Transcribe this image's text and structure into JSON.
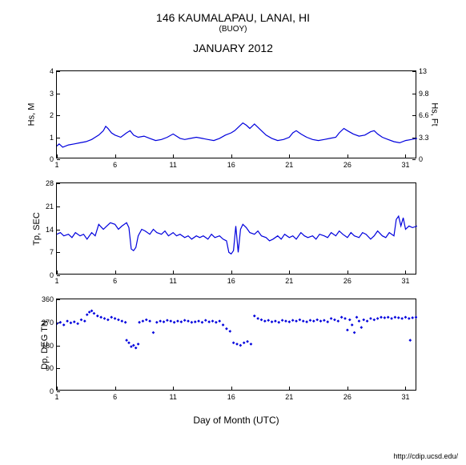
{
  "header": {
    "station": "146 KAUMALAPAU, LANAI, HI",
    "type": "(BUOY)",
    "period": "JANUARY 2012"
  },
  "footer": {
    "url": "http://cdip.ucsd.edu/"
  },
  "x_axis": {
    "label": "Day of Month (UTC)",
    "ticks": [
      1,
      6,
      11,
      16,
      21,
      26,
      31
    ],
    "xmin": 1,
    "xmax": 32
  },
  "colors": {
    "line": "#0000dd",
    "scatter": "#0000dd",
    "bg": "#ffffff",
    "border": "#000000",
    "text": "#000000"
  },
  "panels": [
    {
      "id": "hs",
      "ylabel_left": "Hs, M",
      "ylabel_right": "Hs, Ft",
      "yticks_left": [
        0,
        1,
        2,
        3,
        4
      ],
      "yticks_right": [
        0,
        3.3,
        6.6,
        9.8,
        13
      ],
      "ymin": 0,
      "ymax": 4,
      "height": 110,
      "type": "line",
      "series": [
        [
          1,
          0.6
        ],
        [
          1.2,
          0.7
        ],
        [
          1.5,
          0.55
        ],
        [
          2,
          0.65
        ],
        [
          2.5,
          0.7
        ],
        [
          3,
          0.75
        ],
        [
          3.5,
          0.8
        ],
        [
          4,
          0.9
        ],
        [
          4.3,
          1.0
        ],
        [
          4.6,
          1.1
        ],
        [
          5,
          1.3
        ],
        [
          5.2,
          1.5
        ],
        [
          5.4,
          1.4
        ],
        [
          5.7,
          1.2
        ],
        [
          6,
          1.1
        ],
        [
          6.5,
          1.0
        ],
        [
          7,
          1.2
        ],
        [
          7.3,
          1.3
        ],
        [
          7.6,
          1.1
        ],
        [
          8,
          1.0
        ],
        [
          8.5,
          1.05
        ],
        [
          9,
          0.95
        ],
        [
          9.5,
          0.85
        ],
        [
          10,
          0.9
        ],
        [
          10.5,
          1.0
        ],
        [
          11,
          1.15
        ],
        [
          11.3,
          1.05
        ],
        [
          11.6,
          0.95
        ],
        [
          12,
          0.9
        ],
        [
          12.5,
          0.95
        ],
        [
          13,
          1.0
        ],
        [
          13.5,
          0.95
        ],
        [
          14,
          0.9
        ],
        [
          14.5,
          0.85
        ],
        [
          15,
          0.95
        ],
        [
          15.5,
          1.1
        ],
        [
          16,
          1.2
        ],
        [
          16.3,
          1.3
        ],
        [
          16.7,
          1.5
        ],
        [
          17,
          1.65
        ],
        [
          17.3,
          1.55
        ],
        [
          17.6,
          1.4
        ],
        [
          18,
          1.6
        ],
        [
          18.3,
          1.45
        ],
        [
          18.6,
          1.3
        ],
        [
          19,
          1.1
        ],
        [
          19.5,
          0.95
        ],
        [
          20,
          0.85
        ],
        [
          20.5,
          0.9
        ],
        [
          21,
          1.0
        ],
        [
          21.3,
          1.2
        ],
        [
          21.6,
          1.3
        ],
        [
          22,
          1.15
        ],
        [
          22.5,
          1.0
        ],
        [
          23,
          0.9
        ],
        [
          23.5,
          0.85
        ],
        [
          24,
          0.9
        ],
        [
          24.5,
          0.95
        ],
        [
          25,
          1.0
        ],
        [
          25.3,
          1.2
        ],
        [
          25.7,
          1.4
        ],
        [
          26,
          1.3
        ],
        [
          26.5,
          1.15
        ],
        [
          27,
          1.05
        ],
        [
          27.5,
          1.1
        ],
        [
          28,
          1.25
        ],
        [
          28.3,
          1.3
        ],
        [
          28.6,
          1.15
        ],
        [
          29,
          1.0
        ],
        [
          29.5,
          0.9
        ],
        [
          30,
          0.8
        ],
        [
          30.5,
          0.75
        ],
        [
          31,
          0.85
        ],
        [
          31.5,
          0.9
        ],
        [
          32,
          0.95
        ]
      ]
    },
    {
      "id": "tp",
      "ylabel_left": "Tp, SEC",
      "yticks_left": [
        0,
        7,
        14,
        21,
        28
      ],
      "ymin": 0,
      "ymax": 28,
      "height": 115,
      "type": "line",
      "series": [
        [
          1,
          12.5
        ],
        [
          1.3,
          13
        ],
        [
          1.6,
          12
        ],
        [
          2,
          12.5
        ],
        [
          2.3,
          11.5
        ],
        [
          2.6,
          13
        ],
        [
          3,
          12
        ],
        [
          3.3,
          12.5
        ],
        [
          3.6,
          11
        ],
        [
          4,
          13
        ],
        [
          4.3,
          12
        ],
        [
          4.6,
          15.5
        ],
        [
          5,
          14
        ],
        [
          5.3,
          15
        ],
        [
          5.6,
          16
        ],
        [
          6,
          15.5
        ],
        [
          6.3,
          14
        ],
        [
          6.6,
          15
        ],
        [
          7,
          16
        ],
        [
          7.2,
          14.5
        ],
        [
          7.4,
          8
        ],
        [
          7.6,
          7.5
        ],
        [
          7.8,
          8.5
        ],
        [
          8,
          12
        ],
        [
          8.3,
          14
        ],
        [
          8.6,
          13.5
        ],
        [
          9,
          12.5
        ],
        [
          9.3,
          14
        ],
        [
          9.6,
          13
        ],
        [
          10,
          12.5
        ],
        [
          10.3,
          13.5
        ],
        [
          10.6,
          12
        ],
        [
          11,
          13
        ],
        [
          11.3,
          12
        ],
        [
          11.6,
          12.5
        ],
        [
          12,
          11.5
        ],
        [
          12.3,
          12
        ],
        [
          12.6,
          11
        ],
        [
          13,
          12
        ],
        [
          13.3,
          11.5
        ],
        [
          13.6,
          12
        ],
        [
          14,
          11
        ],
        [
          14.3,
          12.5
        ],
        [
          14.6,
          11.5
        ],
        [
          15,
          12
        ],
        [
          15.3,
          11
        ],
        [
          15.6,
          10.5
        ],
        [
          15.8,
          7
        ],
        [
          16,
          6.5
        ],
        [
          16.2,
          7.5
        ],
        [
          16.4,
          15
        ],
        [
          16.6,
          7
        ],
        [
          16.8,
          14
        ],
        [
          17,
          15.5
        ],
        [
          17.3,
          14.5
        ],
        [
          17.6,
          13
        ],
        [
          18,
          12.5
        ],
        [
          18.3,
          13.5
        ],
        [
          18.6,
          12
        ],
        [
          19,
          11.5
        ],
        [
          19.3,
          10.5
        ],
        [
          19.6,
          11
        ],
        [
          20,
          12
        ],
        [
          20.3,
          11
        ],
        [
          20.6,
          12.5
        ],
        [
          21,
          11.5
        ],
        [
          21.3,
          12
        ],
        [
          21.6,
          11
        ],
        [
          22,
          13
        ],
        [
          22.3,
          12
        ],
        [
          22.6,
          11.5
        ],
        [
          23,
          12
        ],
        [
          23.3,
          11
        ],
        [
          23.6,
          12.5
        ],
        [
          24,
          12
        ],
        [
          24.3,
          11.5
        ],
        [
          24.6,
          13
        ],
        [
          25,
          12
        ],
        [
          25.3,
          13.5
        ],
        [
          25.6,
          12.5
        ],
        [
          26,
          11.5
        ],
        [
          26.3,
          13
        ],
        [
          26.6,
          12
        ],
        [
          27,
          11.5
        ],
        [
          27.3,
          13
        ],
        [
          27.6,
          12.5
        ],
        [
          28,
          11
        ],
        [
          28.3,
          12
        ],
        [
          28.6,
          13.5
        ],
        [
          29,
          12
        ],
        [
          29.3,
          11.5
        ],
        [
          29.6,
          13
        ],
        [
          30,
          12
        ],
        [
          30.2,
          17
        ],
        [
          30.4,
          18
        ],
        [
          30.6,
          15
        ],
        [
          30.8,
          17.5
        ],
        [
          31,
          14
        ],
        [
          31.3,
          15
        ],
        [
          31.6,
          14.5
        ],
        [
          32,
          15
        ]
      ]
    },
    {
      "id": "dp",
      "ylabel_left": "Dp, DEG TN",
      "yticks_left": [
        0,
        90,
        180,
        270,
        360
      ],
      "ymin": 0,
      "ymax": 360,
      "height": 115,
      "type": "scatter",
      "series": [
        [
          1,
          265
        ],
        [
          1.3,
          270
        ],
        [
          1.6,
          260
        ],
        [
          1.9,
          275
        ],
        [
          2.2,
          268
        ],
        [
          2.5,
          272
        ],
        [
          2.8,
          265
        ],
        [
          3.1,
          280
        ],
        [
          3.4,
          275
        ],
        [
          3.6,
          300
        ],
        [
          3.8,
          310
        ],
        [
          4.0,
          315
        ],
        [
          4.2,
          305
        ],
        [
          4.5,
          295
        ],
        [
          4.8,
          290
        ],
        [
          5.1,
          285
        ],
        [
          5.4,
          280
        ],
        [
          5.7,
          290
        ],
        [
          6.0,
          285
        ],
        [
          6.3,
          280
        ],
        [
          6.6,
          275
        ],
        [
          6.9,
          270
        ],
        [
          7.0,
          200
        ],
        [
          7.2,
          190
        ],
        [
          7.4,
          175
        ],
        [
          7.6,
          180
        ],
        [
          7.8,
          170
        ],
        [
          8.0,
          185
        ],
        [
          8.1,
          270
        ],
        [
          8.4,
          275
        ],
        [
          8.7,
          280
        ],
        [
          9.0,
          275
        ],
        [
          9.3,
          230
        ],
        [
          9.6,
          270
        ],
        [
          9.9,
          275
        ],
        [
          10.2,
          272
        ],
        [
          10.5,
          278
        ],
        [
          10.8,
          275
        ],
        [
          11.1,
          270
        ],
        [
          11.4,
          275
        ],
        [
          11.7,
          272
        ],
        [
          12.0,
          278
        ],
        [
          12.3,
          275
        ],
        [
          12.6,
          270
        ],
        [
          12.9,
          272
        ],
        [
          13.2,
          275
        ],
        [
          13.5,
          270
        ],
        [
          13.8,
          278
        ],
        [
          14.1,
          272
        ],
        [
          14.4,
          275
        ],
        [
          14.7,
          270
        ],
        [
          15.0,
          275
        ],
        [
          15.3,
          260
        ],
        [
          15.6,
          245
        ],
        [
          15.9,
          235
        ],
        [
          16.2,
          190
        ],
        [
          16.5,
          185
        ],
        [
          16.8,
          180
        ],
        [
          17.1,
          190
        ],
        [
          17.4,
          195
        ],
        [
          17.7,
          185
        ],
        [
          18.0,
          295
        ],
        [
          18.3,
          285
        ],
        [
          18.6,
          280
        ],
        [
          18.9,
          275
        ],
        [
          19.2,
          278
        ],
        [
          19.5,
          272
        ],
        [
          19.8,
          275
        ],
        [
          20.1,
          270
        ],
        [
          20.4,
          278
        ],
        [
          20.7,
          275
        ],
        [
          21.0,
          272
        ],
        [
          21.3,
          278
        ],
        [
          21.6,
          275
        ],
        [
          21.9,
          280
        ],
        [
          22.2,
          275
        ],
        [
          22.5,
          272
        ],
        [
          22.8,
          278
        ],
        [
          23.1,
          275
        ],
        [
          23.4,
          280
        ],
        [
          23.7,
          275
        ],
        [
          24.0,
          278
        ],
        [
          24.3,
          272
        ],
        [
          24.6,
          285
        ],
        [
          24.9,
          280
        ],
        [
          25.2,
          275
        ],
        [
          25.5,
          290
        ],
        [
          25.8,
          285
        ],
        [
          26.0,
          240
        ],
        [
          26.2,
          280
        ],
        [
          26.4,
          260
        ],
        [
          26.6,
          230
        ],
        [
          26.8,
          290
        ],
        [
          27.0,
          275
        ],
        [
          27.2,
          250
        ],
        [
          27.4,
          280
        ],
        [
          27.7,
          275
        ],
        [
          28.0,
          285
        ],
        [
          28.3,
          280
        ],
        [
          28.6,
          285
        ],
        [
          28.9,
          290
        ],
        [
          29.2,
          288
        ],
        [
          29.5,
          290
        ],
        [
          29.8,
          285
        ],
        [
          30.1,
          290
        ],
        [
          30.4,
          288
        ],
        [
          30.7,
          285
        ],
        [
          31.0,
          290
        ],
        [
          31.3,
          285
        ],
        [
          31.4,
          200
        ],
        [
          31.6,
          288
        ],
        [
          31.9,
          290
        ]
      ]
    }
  ]
}
